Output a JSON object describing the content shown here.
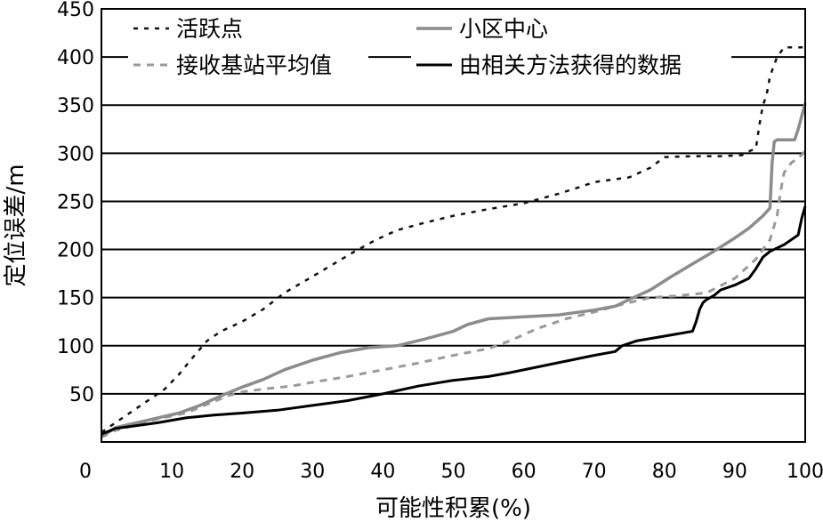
{
  "chart_data": {
    "type": "line",
    "xlabel": "可能性积累(%)",
    "ylabel": "定位误差/m",
    "xlim": [
      0,
      100
    ],
    "ylim": [
      0,
      450
    ],
    "xticks": [
      0,
      10,
      20,
      30,
      40,
      50,
      60,
      70,
      80,
      90,
      100
    ],
    "yticks": [
      50,
      100,
      150,
      200,
      250,
      300,
      350,
      400,
      450
    ],
    "grid": "horizontal",
    "legend_placement": "top",
    "series": [
      {
        "name": "活跃点",
        "style": "dotted",
        "color": "#111111",
        "x": [
          0,
          3,
          5,
          7,
          9,
          11,
          13,
          15,
          17,
          20,
          23,
          26,
          30,
          33,
          36,
          39,
          42,
          46,
          50,
          55,
          60,
          65,
          68,
          70,
          75,
          78,
          80,
          84,
          88,
          91,
          92,
          93,
          93.5,
          94,
          94.5,
          95,
          96,
          97,
          98,
          100
        ],
        "y": [
          10,
          25,
          35,
          45,
          55,
          70,
          88,
          105,
          115,
          125,
          138,
          155,
          172,
          185,
          198,
          210,
          220,
          228,
          235,
          242,
          248,
          258,
          265,
          270,
          275,
          285,
          296,
          297,
          297,
          298,
          302,
          305,
          330,
          350,
          360,
          380,
          400,
          410,
          410,
          410
        ]
      },
      {
        "name": "小区中心",
        "style": "solid",
        "color": "#8c8c8c",
        "x": [
          0,
          2,
          5,
          8,
          11,
          14,
          17,
          20,
          23,
          26,
          30,
          34,
          38,
          42,
          46,
          50,
          52,
          55,
          60,
          65,
          70,
          73,
          75,
          78,
          81,
          84,
          87,
          90,
          92,
          94,
          95,
          95.3,
          95.6,
          96,
          97,
          98,
          98.5,
          99,
          100
        ],
        "y": [
          5,
          15,
          20,
          25,
          30,
          38,
          48,
          57,
          65,
          75,
          85,
          93,
          98,
          100,
          107,
          115,
          122,
          128,
          130,
          132,
          137,
          141,
          148,
          158,
          172,
          185,
          198,
          212,
          222,
          235,
          243,
          290,
          312,
          314,
          314,
          314,
          314,
          325,
          352
        ]
      },
      {
        "name": "接收基站平均值",
        "style": "dashed",
        "color": "#9a9a9a",
        "x": [
          0,
          2,
          5,
          8,
          12,
          16,
          18,
          20,
          23,
          27,
          30,
          35,
          40,
          45,
          50,
          55,
          58,
          62,
          66,
          70,
          74,
          78,
          82,
          86,
          90,
          93,
          95,
          96,
          96.5,
          97,
          98,
          99,
          100
        ],
        "y": [
          5,
          12,
          18,
          24,
          30,
          42,
          48,
          52,
          55,
          58,
          62,
          68,
          75,
          82,
          90,
          97,
          105,
          118,
          128,
          135,
          143,
          150,
          152,
          155,
          170,
          190,
          210,
          235,
          260,
          280,
          290,
          295,
          302
        ]
      },
      {
        "name": "由相关方法获得的数据",
        "style": "solid",
        "color": "#000000",
        "x": [
          0,
          2,
          5,
          8,
          12,
          16,
          20,
          25,
          30,
          35,
          40,
          45,
          50,
          55,
          58,
          62,
          66,
          70,
          73,
          74,
          76,
          80,
          84,
          84.5,
          85,
          85.5,
          86,
          87,
          88,
          90,
          92,
          93,
          94,
          95,
          97,
          99,
          99.5,
          100
        ],
        "y": [
          8,
          14,
          17,
          20,
          25,
          28,
          30,
          33,
          38,
          43,
          50,
          58,
          64,
          68,
          72,
          78,
          84,
          90,
          94,
          100,
          105,
          110,
          115,
          125,
          138,
          145,
          148,
          152,
          158,
          163,
          170,
          180,
          192,
          198,
          205,
          215,
          232,
          245
        ]
      }
    ]
  }
}
